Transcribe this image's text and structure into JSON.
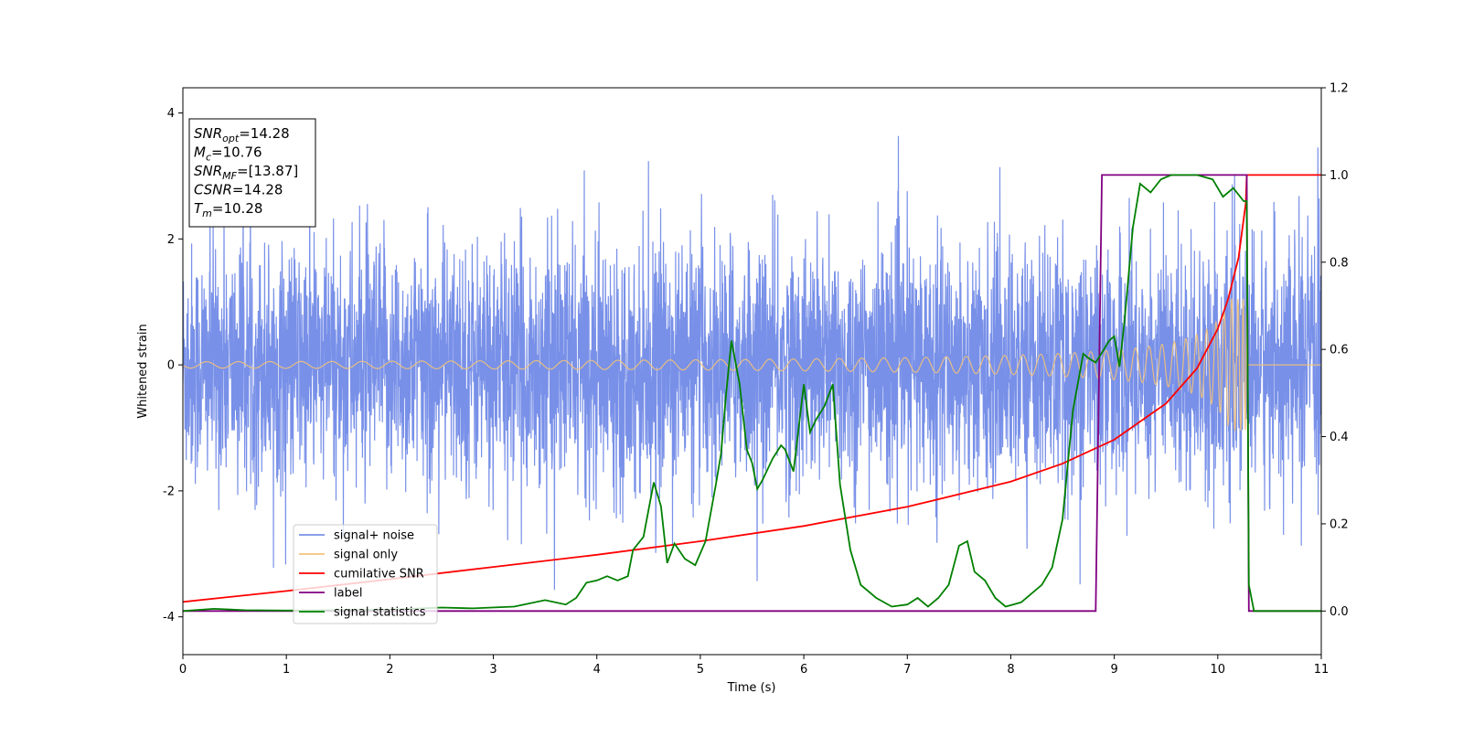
{
  "chart_data": {
    "type": "line",
    "xlabel": "Time (s)",
    "ylabel": "Whitened strain",
    "xlim": [
      0,
      11
    ],
    "ylim": [
      -4.6,
      4.4
    ],
    "y2lim": [
      -0.1,
      1.2
    ],
    "x_ticks": [
      0,
      1,
      2,
      3,
      4,
      5,
      6,
      7,
      8,
      9,
      10,
      11
    ],
    "y_ticks": [
      -4,
      -2,
      0,
      2,
      4
    ],
    "y2_ticks": [
      "0.0",
      "0.2",
      "0.4",
      "0.6",
      "0.8",
      "1.0",
      "1.2"
    ],
    "grid": false,
    "legend_position": "lower-left",
    "info_box": {
      "lines": [
        {
          "base": "SNR",
          "sub": "opt",
          "value": "=14.28"
        },
        {
          "base": "M",
          "sub": "c",
          "value": "=10.76"
        },
        {
          "base": "SNR",
          "sub": "MF",
          "value": "=[13.87]"
        },
        {
          "base": "CSNR",
          "sub": "",
          "value": "=14.28"
        },
        {
          "base": "T",
          "sub": "m",
          "value": "=10.28"
        }
      ]
    },
    "series": [
      {
        "name": "signal+ noise",
        "color": "#7890e8",
        "axis": "left",
        "description": "whitened noise, amplitude about ±2.5 with spikes to ±4"
      },
      {
        "name": "signal only",
        "color": "#f2c27a",
        "axis": "left",
        "chirp": {
          "end_time": 10.28,
          "initial_amplitude": 0.05,
          "peak_amplitude": 1.05
        }
      },
      {
        "name": "cumilative SNR",
        "color": "#ff0000",
        "axis": "right",
        "x": [
          0,
          1,
          2,
          3,
          4,
          5,
          6,
          7,
          8,
          8.5,
          9,
          9.5,
          9.8,
          10,
          10.1,
          10.2,
          10.27,
          10.28,
          10.3,
          11
        ],
        "y": [
          0.021,
          0.046,
          0.073,
          0.101,
          0.129,
          0.16,
          0.195,
          0.239,
          0.297,
          0.338,
          0.393,
          0.476,
          0.557,
          0.647,
          0.715,
          0.81,
          0.935,
          1.0,
          1.0,
          1.0
        ]
      },
      {
        "name": "label",
        "color": "#800080",
        "axis": "right",
        "x": [
          0,
          8.82,
          8.88,
          10.28,
          10.3,
          11
        ],
        "y": [
          0.0,
          0.0,
          1.0,
          1.0,
          0.0,
          0.0
        ]
      },
      {
        "name": "signal statistics",
        "color": "#008000",
        "axis": "right",
        "x": [
          0,
          0.3,
          0.6,
          1,
          2,
          2.5,
          2.8,
          3.2,
          3.5,
          3.7,
          3.8,
          3.9,
          4,
          4.1,
          4.2,
          4.3,
          4.35,
          4.45,
          4.55,
          4.62,
          4.68,
          4.75,
          4.85,
          4.95,
          5.05,
          5.15,
          5.2,
          5.25,
          5.3,
          5.38,
          5.45,
          5.5,
          5.55,
          5.6,
          5.7,
          5.78,
          5.82,
          5.9,
          6.0,
          6.06,
          6.12,
          6.2,
          6.28,
          6.35,
          6.45,
          6.55,
          6.7,
          6.85,
          7.0,
          7.1,
          7.2,
          7.3,
          7.4,
          7.5,
          7.58,
          7.65,
          7.75,
          7.85,
          7.95,
          8.1,
          8.3,
          8.4,
          8.5,
          8.6,
          8.7,
          8.75,
          8.82,
          8.9,
          8.95,
          9.0,
          9.05,
          9.1,
          9.18,
          9.25,
          9.35,
          9.45,
          9.55,
          9.65,
          9.8,
          9.95,
          10.05,
          10.15,
          10.25,
          10.28,
          10.3,
          10.35,
          10.45,
          10.6,
          11
        ],
        "y": [
          0.0,
          0.005,
          0.002,
          0.001,
          0.003,
          0.008,
          0.006,
          0.01,
          0.025,
          0.015,
          0.03,
          0.065,
          0.07,
          0.08,
          0.07,
          0.08,
          0.14,
          0.17,
          0.295,
          0.24,
          0.11,
          0.155,
          0.12,
          0.105,
          0.16,
          0.29,
          0.36,
          0.5,
          0.62,
          0.52,
          0.37,
          0.34,
          0.28,
          0.3,
          0.35,
          0.38,
          0.37,
          0.32,
          0.52,
          0.41,
          0.44,
          0.47,
          0.52,
          0.29,
          0.14,
          0.06,
          0.03,
          0.01,
          0.015,
          0.03,
          0.01,
          0.03,
          0.06,
          0.15,
          0.16,
          0.09,
          0.07,
          0.03,
          0.01,
          0.02,
          0.06,
          0.1,
          0.21,
          0.46,
          0.59,
          0.58,
          0.57,
          0.6,
          0.62,
          0.63,
          0.56,
          0.67,
          0.88,
          0.98,
          0.96,
          0.99,
          1.0,
          1.0,
          1.0,
          0.99,
          0.95,
          0.97,
          0.94,
          0.94,
          0.06,
          0.0,
          0.0,
          0.0,
          0.0
        ]
      }
    ]
  }
}
